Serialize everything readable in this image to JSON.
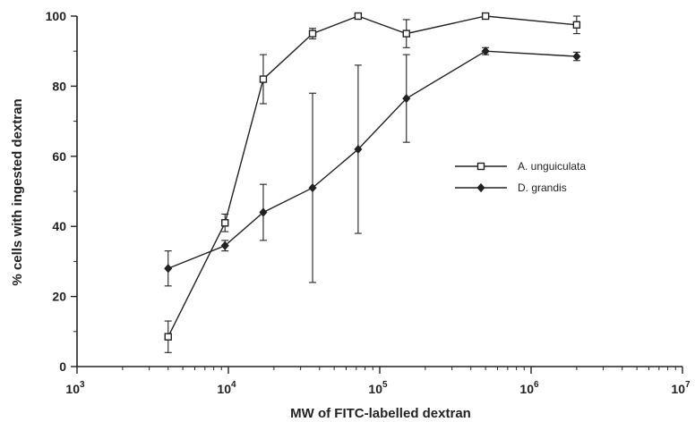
{
  "chart_data": {
    "type": "line",
    "title": "",
    "xlabel": "MW of FITC-labelled dextran",
    "ylabel": "% cells with ingested dextran",
    "xscale": "log",
    "xlim": [
      1000,
      10000000
    ],
    "ylim": [
      0,
      100
    ],
    "x_tick_labels": [
      {
        "base": "10",
        "exp": "3"
      },
      {
        "base": "10",
        "exp": "4"
      },
      {
        "base": "10",
        "exp": "5"
      },
      {
        "base": "10",
        "exp": "6"
      },
      {
        "base": "10",
        "exp": "7"
      }
    ],
    "y_tick_labels": [
      "0",
      "20",
      "40",
      "60",
      "80",
      "100"
    ],
    "grid": false,
    "legend_position": "center-right",
    "series": [
      {
        "name": "A. unguiculata",
        "marker": "open-square",
        "color": "#222222",
        "x": [
          4000,
          9500,
          17000,
          36000,
          72000,
          150000,
          500000,
          2000000
        ],
        "y": [
          8.5,
          41,
          82,
          95,
          100,
          95,
          100,
          97.5
        ],
        "err": [
          4.5,
          2.5,
          7,
          1.5,
          0.5,
          4,
          0.5,
          2.5
        ]
      },
      {
        "name": "D. grandis",
        "marker": "filled-diamond",
        "color": "#222222",
        "x": [
          4000,
          9500,
          17000,
          36000,
          72000,
          150000,
          500000,
          2000000
        ],
        "y": [
          28,
          34.5,
          44,
          51,
          62,
          76.5,
          90,
          88.5
        ],
        "err": [
          5,
          1.5,
          8,
          27,
          24,
          12.5,
          1,
          1.2
        ]
      }
    ]
  }
}
